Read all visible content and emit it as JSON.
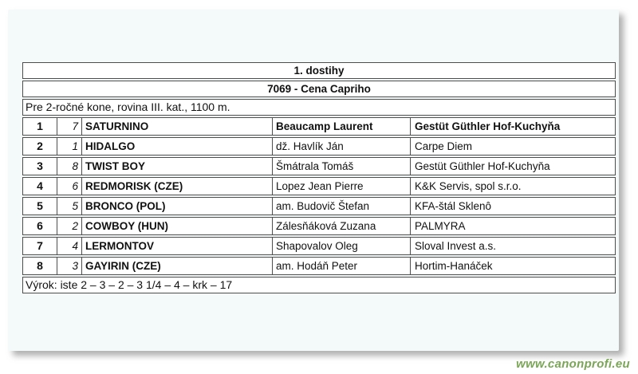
{
  "race": {
    "title": "1. dostihy",
    "subtitle": "7069 - Cena Capriho",
    "conditions": "Pre 2-ročné kone, rovina III. kat., 1100 m.",
    "verdict": "Výrok: iste 2 – 3 – 2 – 3 1/4 – 4 – krk – 17",
    "results": [
      {
        "place": "1",
        "number": "7",
        "horse": "SATURNINO",
        "jockey": "Beaucamp Laurent",
        "owner": "Gestüt Güthler Hof-Kuchyňa",
        "winner": true
      },
      {
        "place": "2",
        "number": "1",
        "horse": "HIDALGO",
        "jockey": "dž. Havlík Ján",
        "owner": "Carpe Diem",
        "winner": false
      },
      {
        "place": "3",
        "number": "8",
        "horse": "TWIST BOY",
        "jockey": "Šmátrala Tomáš",
        "owner": "Gestüt Güthler Hof-Kuchyňa",
        "winner": false
      },
      {
        "place": "4",
        "number": "6",
        "horse": "REDMORISK (CZE)",
        "jockey": "Lopez Jean Pierre",
        "owner": "K&K Servis, spol s.r.o.",
        "winner": false
      },
      {
        "place": "5",
        "number": "5",
        "horse": "BRONCO (POL)",
        "jockey": "am. Budovič Štefan",
        "owner": "KFA-štál Sklenô",
        "winner": false
      },
      {
        "place": "6",
        "number": "2",
        "horse": "COWBOY (HUN)",
        "jockey": "Zálesňáková Zuzana",
        "owner": "PALMYRA",
        "winner": false
      },
      {
        "place": "7",
        "number": "4",
        "horse": "LERMONTOV",
        "jockey": "Shapovalov Oleg",
        "owner": "Sloval Invest a.s.",
        "winner": false
      },
      {
        "place": "8",
        "number": "3",
        "horse": "GAYIRIN (CZE)",
        "jockey": "am. Hodáň Peter",
        "owner": "Hortim-Hanáček",
        "winner": false
      }
    ]
  },
  "watermark": {
    "text": "www.canonprofi.eu",
    "color": "#7aa656"
  }
}
